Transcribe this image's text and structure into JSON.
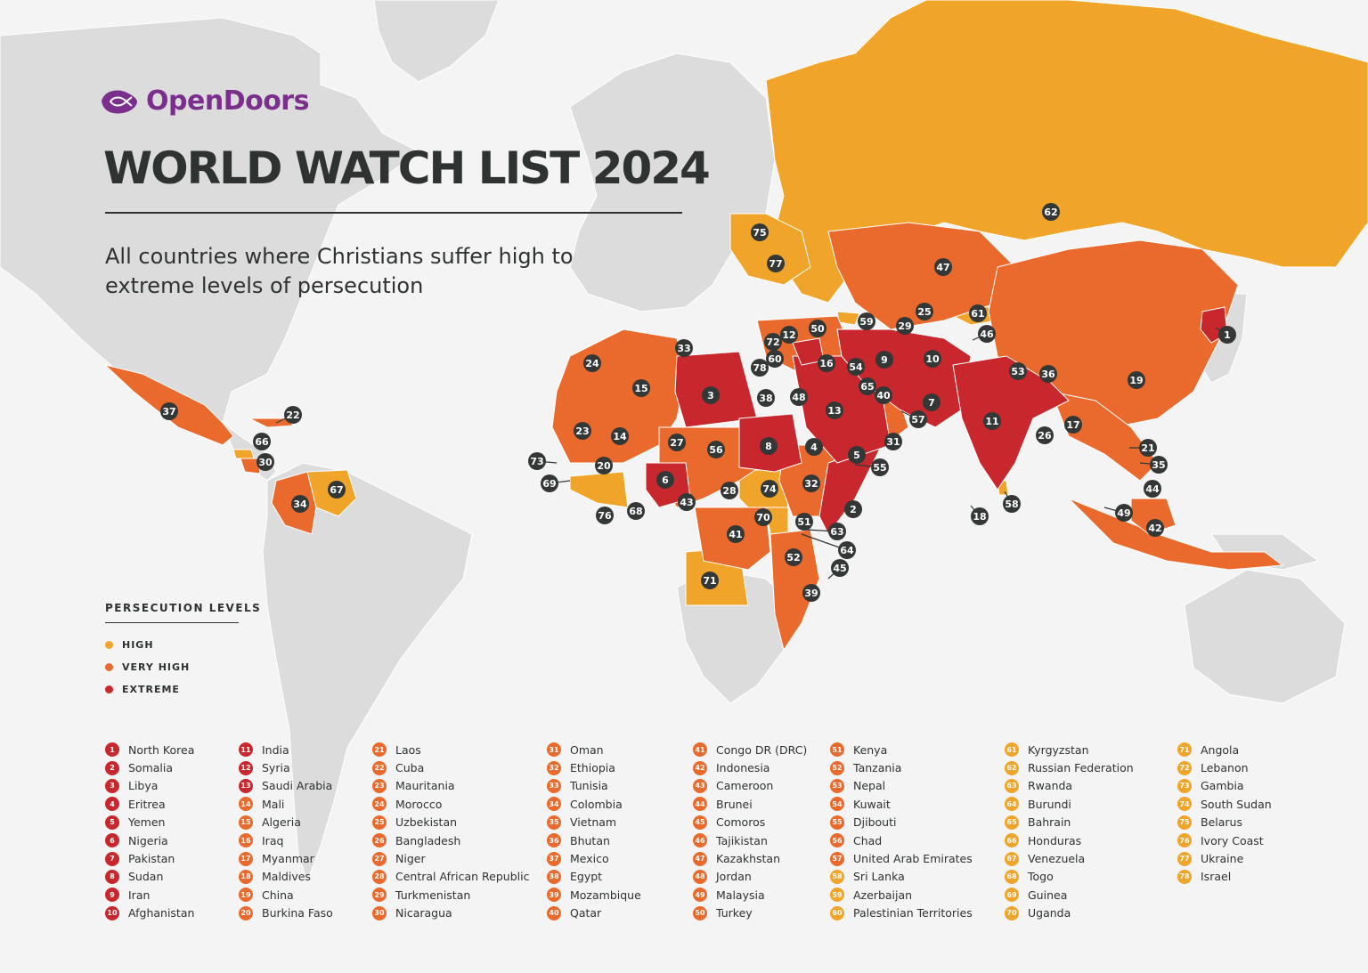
{
  "logo": {
    "text_a": "Open",
    "text_b": "Doors",
    "icon": "fish-logo-icon"
  },
  "title": "WORLD WATCH LIST 2024",
  "subtitle": "All countries where Christians suffer high to extreme levels of persecution",
  "legend": {
    "title": "PERSECUTION LEVELS",
    "items": [
      {
        "label": "HIGH",
        "color": "#f0a52a"
      },
      {
        "label": "VERY HIGH",
        "color": "#e96a2c"
      },
      {
        "label": "EXTREME",
        "color": "#c8272d"
      }
    ]
  },
  "colors": {
    "high": "#f0a52a",
    "very_high": "#e96a2c",
    "extreme": "#c8272d",
    "land": "#dcdcdc",
    "water": "#f4f4f4",
    "marker": "#333837"
  },
  "countries": [
    {
      "rank": "1",
      "name": "North Korea",
      "level": "extreme"
    },
    {
      "rank": "2",
      "name": "Somalia",
      "level": "extreme"
    },
    {
      "rank": "3",
      "name": "Libya",
      "level": "extreme"
    },
    {
      "rank": "4",
      "name": "Eritrea",
      "level": "extreme"
    },
    {
      "rank": "5",
      "name": "Yemen",
      "level": "extreme"
    },
    {
      "rank": "6",
      "name": "Nigeria",
      "level": "extreme"
    },
    {
      "rank": "7",
      "name": "Pakistan",
      "level": "extreme"
    },
    {
      "rank": "8",
      "name": "Sudan",
      "level": "extreme"
    },
    {
      "rank": "9",
      "name": "Iran",
      "level": "extreme"
    },
    {
      "rank": "10",
      "name": "Afghanistan",
      "level": "extreme"
    },
    {
      "rank": "11",
      "name": "India",
      "level": "extreme"
    },
    {
      "rank": "12",
      "name": "Syria",
      "level": "extreme"
    },
    {
      "rank": "13",
      "name": "Saudi Arabia",
      "level": "extreme"
    },
    {
      "rank": "14",
      "name": "Mali",
      "level": "very_high"
    },
    {
      "rank": "15",
      "name": "Algeria",
      "level": "very_high"
    },
    {
      "rank": "16",
      "name": "Iraq",
      "level": "very_high"
    },
    {
      "rank": "17",
      "name": "Myanmar",
      "level": "very_high"
    },
    {
      "rank": "18",
      "name": "Maldives",
      "level": "very_high"
    },
    {
      "rank": "19",
      "name": "China",
      "level": "very_high"
    },
    {
      "rank": "20",
      "name": "Burkina Faso",
      "level": "very_high"
    },
    {
      "rank": "21",
      "name": "Laos",
      "level": "very_high"
    },
    {
      "rank": "22",
      "name": "Cuba",
      "level": "very_high"
    },
    {
      "rank": "23",
      "name": "Mauritania",
      "level": "very_high"
    },
    {
      "rank": "24",
      "name": "Morocco",
      "level": "very_high"
    },
    {
      "rank": "25",
      "name": "Uzbekistan",
      "level": "very_high"
    },
    {
      "rank": "26",
      "name": "Bangladesh",
      "level": "very_high"
    },
    {
      "rank": "27",
      "name": "Niger",
      "level": "very_high"
    },
    {
      "rank": "28",
      "name": "Central African Republic",
      "level": "very_high"
    },
    {
      "rank": "29",
      "name": "Turkmenistan",
      "level": "very_high"
    },
    {
      "rank": "30",
      "name": "Nicaragua",
      "level": "very_high"
    },
    {
      "rank": "31",
      "name": "Oman",
      "level": "very_high"
    },
    {
      "rank": "32",
      "name": "Ethiopia",
      "level": "very_high"
    },
    {
      "rank": "33",
      "name": "Tunisia",
      "level": "very_high"
    },
    {
      "rank": "34",
      "name": "Colombia",
      "level": "very_high"
    },
    {
      "rank": "35",
      "name": "Vietnam",
      "level": "very_high"
    },
    {
      "rank": "36",
      "name": "Bhutan",
      "level": "very_high"
    },
    {
      "rank": "37",
      "name": "Mexico",
      "level": "very_high"
    },
    {
      "rank": "38",
      "name": "Egypt",
      "level": "very_high"
    },
    {
      "rank": "39",
      "name": "Mozambique",
      "level": "very_high"
    },
    {
      "rank": "40",
      "name": "Qatar",
      "level": "very_high"
    },
    {
      "rank": "41",
      "name": "Congo DR (DRC)",
      "level": "very_high"
    },
    {
      "rank": "42",
      "name": "Indonesia",
      "level": "very_high"
    },
    {
      "rank": "43",
      "name": "Cameroon",
      "level": "very_high"
    },
    {
      "rank": "44",
      "name": "Brunei",
      "level": "very_high"
    },
    {
      "rank": "45",
      "name": "Comoros",
      "level": "very_high"
    },
    {
      "rank": "46",
      "name": "Tajikistan",
      "level": "very_high"
    },
    {
      "rank": "47",
      "name": "Kazakhstan",
      "level": "very_high"
    },
    {
      "rank": "48",
      "name": "Jordan",
      "level": "very_high"
    },
    {
      "rank": "49",
      "name": "Malaysia",
      "level": "very_high"
    },
    {
      "rank": "50",
      "name": "Turkey",
      "level": "very_high"
    },
    {
      "rank": "51",
      "name": "Kenya",
      "level": "very_high"
    },
    {
      "rank": "52",
      "name": "Tanzania",
      "level": "very_high"
    },
    {
      "rank": "53",
      "name": "Nepal",
      "level": "very_high"
    },
    {
      "rank": "54",
      "name": "Kuwait",
      "level": "very_high"
    },
    {
      "rank": "55",
      "name": "Djibouti",
      "level": "very_high"
    },
    {
      "rank": "56",
      "name": "Chad",
      "level": "very_high"
    },
    {
      "rank": "57",
      "name": "United Arab Emirates",
      "level": "very_high"
    },
    {
      "rank": "58",
      "name": "Sri Lanka",
      "level": "high"
    },
    {
      "rank": "59",
      "name": "Azerbaijan",
      "level": "high"
    },
    {
      "rank": "60",
      "name": "Palestinian Territories",
      "level": "high"
    },
    {
      "rank": "61",
      "name": "Kyrgyzstan",
      "level": "high"
    },
    {
      "rank": "62",
      "name": "Russian Federation",
      "level": "high"
    },
    {
      "rank": "63",
      "name": "Rwanda",
      "level": "high"
    },
    {
      "rank": "64",
      "name": "Burundi",
      "level": "high"
    },
    {
      "rank": "65",
      "name": "Bahrain",
      "level": "high"
    },
    {
      "rank": "66",
      "name": "Honduras",
      "level": "high"
    },
    {
      "rank": "67",
      "name": "Venezuela",
      "level": "high"
    },
    {
      "rank": "68",
      "name": "Togo",
      "level": "high"
    },
    {
      "rank": "69",
      "name": "Guinea",
      "level": "high"
    },
    {
      "rank": "70",
      "name": "Uganda",
      "level": "high"
    },
    {
      "rank": "71",
      "name": "Angola",
      "level": "high"
    },
    {
      "rank": "72",
      "name": "Lebanon",
      "level": "high"
    },
    {
      "rank": "73",
      "name": "Gambia",
      "level": "high"
    },
    {
      "rank": "74",
      "name": "South Sudan",
      "level": "high"
    },
    {
      "rank": "75",
      "name": "Belarus",
      "level": "high"
    },
    {
      "rank": "76",
      "name": "Ivory Coast",
      "level": "high"
    },
    {
      "rank": "77",
      "name": "Ukraine",
      "level": "high"
    },
    {
      "rank": "78",
      "name": "Israel",
      "level": "high"
    }
  ]
}
